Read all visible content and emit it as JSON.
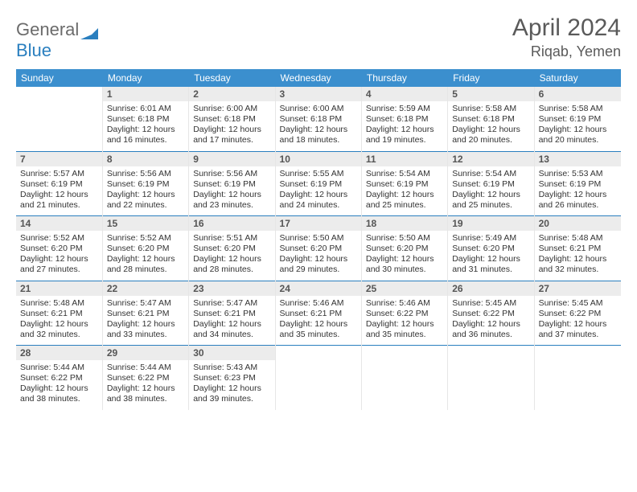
{
  "logo": {
    "word1": "General",
    "word2": "Blue",
    "shape_color": "#2a7fbf"
  },
  "title": "April 2024",
  "location": "Riqab, Yemen",
  "colors": {
    "header_bg": "#3b8fce",
    "header_text": "#ffffff",
    "daynum_bg": "#ececec",
    "week_divider": "#2a7fbf",
    "text": "#333333"
  },
  "dow": [
    "Sunday",
    "Monday",
    "Tuesday",
    "Wednesday",
    "Thursday",
    "Friday",
    "Saturday"
  ],
  "weeks": [
    [
      null,
      {
        "n": 1,
        "sr": "6:01 AM",
        "ss": "6:18 PM",
        "dl": "12 hours and 16 minutes."
      },
      {
        "n": 2,
        "sr": "6:00 AM",
        "ss": "6:18 PM",
        "dl": "12 hours and 17 minutes."
      },
      {
        "n": 3,
        "sr": "6:00 AM",
        "ss": "6:18 PM",
        "dl": "12 hours and 18 minutes."
      },
      {
        "n": 4,
        "sr": "5:59 AM",
        "ss": "6:18 PM",
        "dl": "12 hours and 19 minutes."
      },
      {
        "n": 5,
        "sr": "5:58 AM",
        "ss": "6:18 PM",
        "dl": "12 hours and 20 minutes."
      },
      {
        "n": 6,
        "sr": "5:58 AM",
        "ss": "6:19 PM",
        "dl": "12 hours and 20 minutes."
      }
    ],
    [
      {
        "n": 7,
        "sr": "5:57 AM",
        "ss": "6:19 PM",
        "dl": "12 hours and 21 minutes."
      },
      {
        "n": 8,
        "sr": "5:56 AM",
        "ss": "6:19 PM",
        "dl": "12 hours and 22 minutes."
      },
      {
        "n": 9,
        "sr": "5:56 AM",
        "ss": "6:19 PM",
        "dl": "12 hours and 23 minutes."
      },
      {
        "n": 10,
        "sr": "5:55 AM",
        "ss": "6:19 PM",
        "dl": "12 hours and 24 minutes."
      },
      {
        "n": 11,
        "sr": "5:54 AM",
        "ss": "6:19 PM",
        "dl": "12 hours and 25 minutes."
      },
      {
        "n": 12,
        "sr": "5:54 AM",
        "ss": "6:19 PM",
        "dl": "12 hours and 25 minutes."
      },
      {
        "n": 13,
        "sr": "5:53 AM",
        "ss": "6:19 PM",
        "dl": "12 hours and 26 minutes."
      }
    ],
    [
      {
        "n": 14,
        "sr": "5:52 AM",
        "ss": "6:20 PM",
        "dl": "12 hours and 27 minutes."
      },
      {
        "n": 15,
        "sr": "5:52 AM",
        "ss": "6:20 PM",
        "dl": "12 hours and 28 minutes."
      },
      {
        "n": 16,
        "sr": "5:51 AM",
        "ss": "6:20 PM",
        "dl": "12 hours and 28 minutes."
      },
      {
        "n": 17,
        "sr": "5:50 AM",
        "ss": "6:20 PM",
        "dl": "12 hours and 29 minutes."
      },
      {
        "n": 18,
        "sr": "5:50 AM",
        "ss": "6:20 PM",
        "dl": "12 hours and 30 minutes."
      },
      {
        "n": 19,
        "sr": "5:49 AM",
        "ss": "6:20 PM",
        "dl": "12 hours and 31 minutes."
      },
      {
        "n": 20,
        "sr": "5:48 AM",
        "ss": "6:21 PM",
        "dl": "12 hours and 32 minutes."
      }
    ],
    [
      {
        "n": 21,
        "sr": "5:48 AM",
        "ss": "6:21 PM",
        "dl": "12 hours and 32 minutes."
      },
      {
        "n": 22,
        "sr": "5:47 AM",
        "ss": "6:21 PM",
        "dl": "12 hours and 33 minutes."
      },
      {
        "n": 23,
        "sr": "5:47 AM",
        "ss": "6:21 PM",
        "dl": "12 hours and 34 minutes."
      },
      {
        "n": 24,
        "sr": "5:46 AM",
        "ss": "6:21 PM",
        "dl": "12 hours and 35 minutes."
      },
      {
        "n": 25,
        "sr": "5:46 AM",
        "ss": "6:22 PM",
        "dl": "12 hours and 35 minutes."
      },
      {
        "n": 26,
        "sr": "5:45 AM",
        "ss": "6:22 PM",
        "dl": "12 hours and 36 minutes."
      },
      {
        "n": 27,
        "sr": "5:45 AM",
        "ss": "6:22 PM",
        "dl": "12 hours and 37 minutes."
      }
    ],
    [
      {
        "n": 28,
        "sr": "5:44 AM",
        "ss": "6:22 PM",
        "dl": "12 hours and 38 minutes."
      },
      {
        "n": 29,
        "sr": "5:44 AM",
        "ss": "6:22 PM",
        "dl": "12 hours and 38 minutes."
      },
      {
        "n": 30,
        "sr": "5:43 AM",
        "ss": "6:23 PM",
        "dl": "12 hours and 39 minutes."
      },
      null,
      null,
      null,
      null
    ]
  ],
  "labels": {
    "sunrise": "Sunrise:",
    "sunset": "Sunset:",
    "daylight": "Daylight:"
  }
}
